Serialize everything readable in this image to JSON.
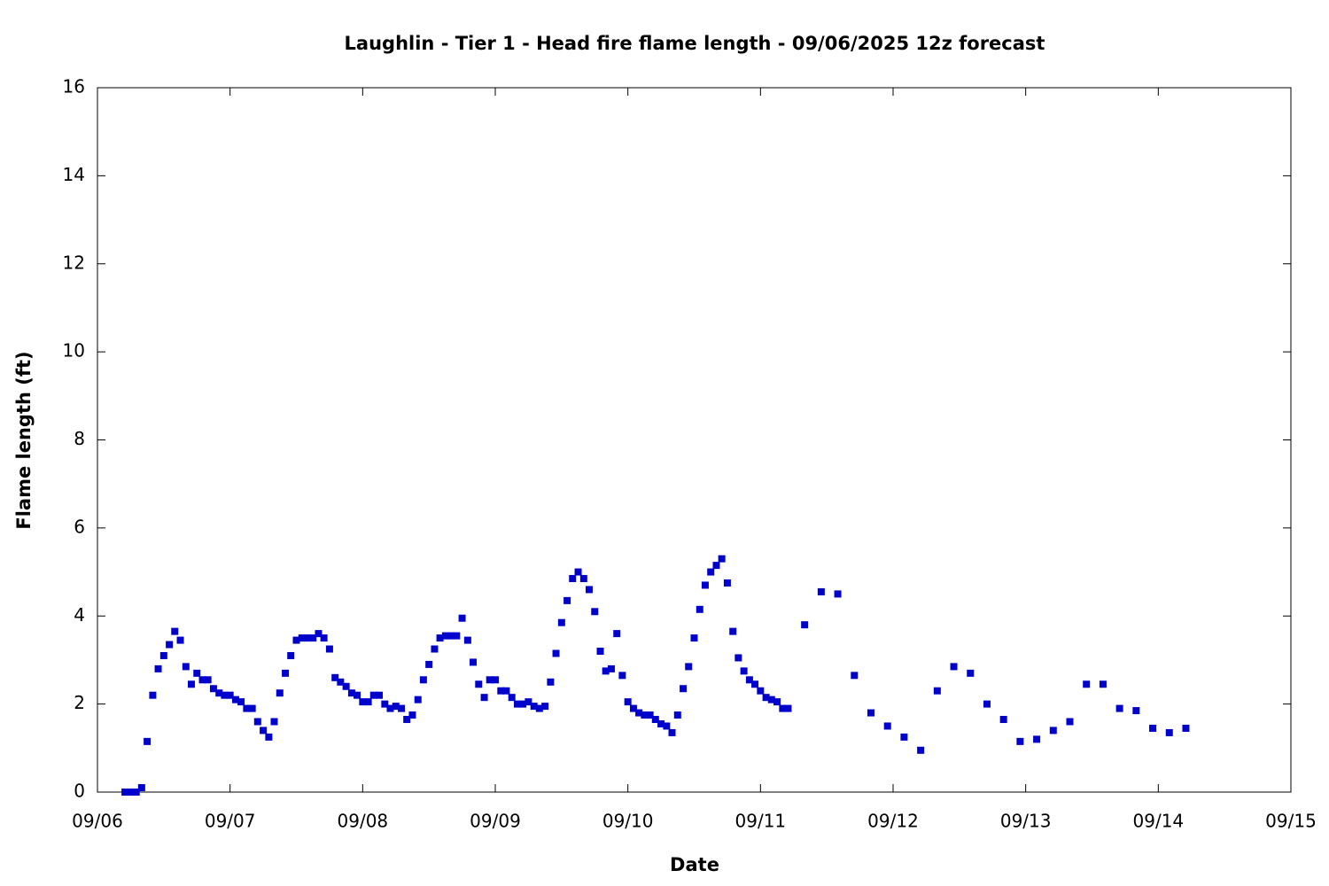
{
  "chart_data": {
    "type": "scatter",
    "title": "Laughlin - Tier 1 - Head fire flame length - 09/06/2025 12z forecast",
    "xlabel": "Date",
    "ylabel": "Flame length (ft)",
    "color": "#0000cc",
    "x": [
      6.208,
      6.25,
      6.292,
      6.333,
      6.375,
      6.417,
      6.458,
      6.5,
      6.542,
      6.583,
      6.625,
      6.667,
      6.708,
      6.75,
      6.792,
      6.833,
      6.875,
      6.917,
      6.958,
      7,
      7.042,
      7.083,
      7.125,
      7.167,
      7.208,
      7.25,
      7.292,
      7.333,
      7.375,
      7.417,
      7.458,
      7.5,
      7.542,
      7.583,
      7.625,
      7.667,
      7.708,
      7.75,
      7.792,
      7.833,
      7.875,
      7.917,
      7.958,
      8,
      8.042,
      8.083,
      8.125,
      8.167,
      8.208,
      8.25,
      8.292,
      8.333,
      8.375,
      8.417,
      8.458,
      8.5,
      8.542,
      8.583,
      8.625,
      8.667,
      8.708,
      8.75,
      8.792,
      8.833,
      8.875,
      8.917,
      8.958,
      9,
      9.042,
      9.083,
      9.125,
      9.167,
      9.208,
      9.25,
      9.292,
      9.333,
      9.375,
      9.417,
      9.458,
      9.5,
      9.542,
      9.583,
      9.625,
      9.667,
      9.708,
      9.75,
      9.792,
      9.833,
      9.875,
      9.917,
      9.958,
      10,
      10.042,
      10.083,
      10.125,
      10.167,
      10.208,
      10.25,
      10.292,
      10.333,
      10.375,
      10.417,
      10.458,
      10.5,
      10.542,
      10.583,
      10.625,
      10.667,
      10.708,
      10.75,
      10.792,
      10.833,
      10.875,
      10.917,
      10.958,
      11,
      11.042,
      11.083,
      11.125,
      11.167,
      11.208,
      11.333,
      11.458,
      11.583,
      11.708,
      11.833,
      11.958,
      12.083,
      12.208,
      12.333,
      12.458,
      12.583,
      12.708,
      12.833,
      12.958,
      13.083,
      13.208,
      13.333,
      13.458,
      13.583,
      13.708,
      13.833,
      13.958,
      14.083,
      14.208
    ],
    "values": [
      0,
      0,
      0,
      0.1,
      1.15,
      2.2,
      2.8,
      3.1,
      3.35,
      3.65,
      3.45,
      2.85,
      2.45,
      2.7,
      2.55,
      2.55,
      2.35,
      2.25,
      2.2,
      2.2,
      2.1,
      2.05,
      1.9,
      1.9,
      1.6,
      1.4,
      1.25,
      1.6,
      2.25,
      2.7,
      3.1,
      3.45,
      3.5,
      3.5,
      3.5,
      3.6,
      3.5,
      3.25,
      2.6,
      2.5,
      2.4,
      2.25,
      2.2,
      2.05,
      2.05,
      2.2,
      2.2,
      2.0,
      1.9,
      1.95,
      1.9,
      1.65,
      1.75,
      2.1,
      2.55,
      2.9,
      3.25,
      3.5,
      3.55,
      3.55,
      3.55,
      3.95,
      3.45,
      2.95,
      2.45,
      2.15,
      2.55,
      2.55,
      2.3,
      2.3,
      2.15,
      2.0,
      2.0,
      2.05,
      1.95,
      1.9,
      1.95,
      2.5,
      3.15,
      3.85,
      4.35,
      4.85,
      5.0,
      4.85,
      4.6,
      4.1,
      3.2,
      2.75,
      2.8,
      3.6,
      2.65,
      2.05,
      1.9,
      1.8,
      1.75,
      1.75,
      1.65,
      1.55,
      1.5,
      1.35,
      1.75,
      2.35,
      2.85,
      3.5,
      4.15,
      4.7,
      5.0,
      5.15,
      5.3,
      4.75,
      3.65,
      3.05,
      2.75,
      2.55,
      2.45,
      2.3,
      2.15,
      2.1,
      2.05,
      1.9,
      1.9,
      3.8,
      4.55,
      4.5,
      2.65,
      1.8,
      1.5,
      1.25,
      0.95,
      2.3,
      2.85,
      2.7,
      2.0,
      1.65,
      1.15,
      1.2,
      1.4,
      1.6,
      2.45,
      2.45,
      1.9,
      1.85,
      1.45,
      1.35,
      1.45
    ],
    "xlim": [
      6,
      15
    ],
    "xticks": [
      {
        "value": 6,
        "label": "09/06"
      },
      {
        "value": 7,
        "label": "09/07"
      },
      {
        "value": 8,
        "label": "09/08"
      },
      {
        "value": 9,
        "label": "09/09"
      },
      {
        "value": 10,
        "label": "09/10"
      },
      {
        "value": 11,
        "label": "09/11"
      },
      {
        "value": 12,
        "label": "09/12"
      },
      {
        "value": 13,
        "label": "09/13"
      },
      {
        "value": 14,
        "label": "09/14"
      },
      {
        "value": 15,
        "label": "09/15"
      }
    ],
    "ylim": [
      0,
      16
    ],
    "yticks": [
      0,
      2,
      4,
      6,
      8,
      10,
      12,
      14,
      16
    ],
    "grid": false
  }
}
